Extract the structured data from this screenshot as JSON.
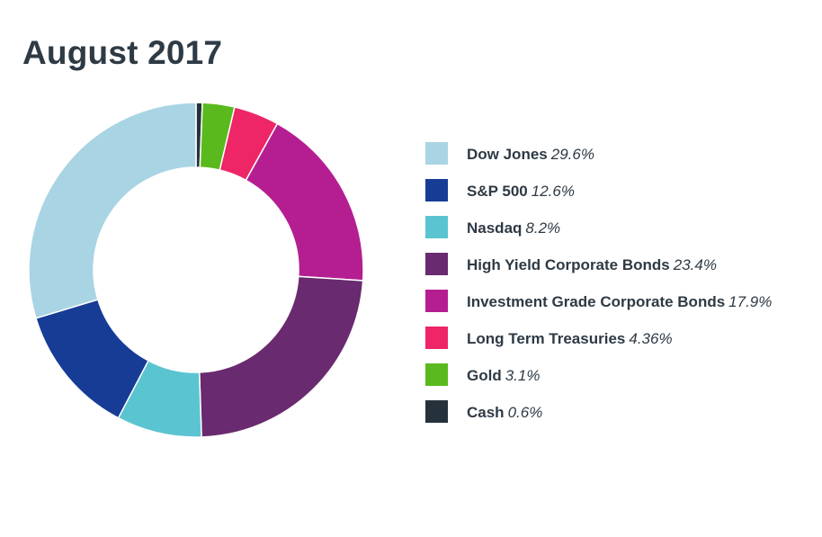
{
  "chart_data": {
    "type": "pie",
    "variant": "donut",
    "title": "August 2017",
    "legend_position": "right",
    "start_angle_deg": 0,
    "direction": "clockwise",
    "series": [
      {
        "name": "Cash",
        "value": 0.6,
        "label": "0.6%",
        "color": "#26323b"
      },
      {
        "name": "Gold",
        "value": 3.1,
        "label": "3.1%",
        "color": "#5aba1d"
      },
      {
        "name": "Long Term Treasuries",
        "value": 4.36,
        "label": "4.36%",
        "color": "#ee2566"
      },
      {
        "name": "Investment Grade Corporate Bonds",
        "value": 17.9,
        "label": "17.9%",
        "color": "#b51e91"
      },
      {
        "name": "High Yield Corporate Bonds",
        "value": 23.4,
        "label": "23.4%",
        "color": "#6a2a6f"
      },
      {
        "name": "Nasdaq",
        "value": 8.2,
        "label": "8.2%",
        "color": "#5bc4d1"
      },
      {
        "name": "S&P 500",
        "value": 12.6,
        "label": "12.6%",
        "color": "#163c96"
      },
      {
        "name": "Dow Jones",
        "value": 29.6,
        "label": "29.6%",
        "color": "#a9d4e4"
      }
    ],
    "legend_order": [
      "Dow Jones",
      "S&P 500",
      "Nasdaq",
      "High Yield Corporate Bonds",
      "Investment Grade Corporate Bonds",
      "Long Term Treasuries",
      "Gold",
      "Cash"
    ]
  }
}
